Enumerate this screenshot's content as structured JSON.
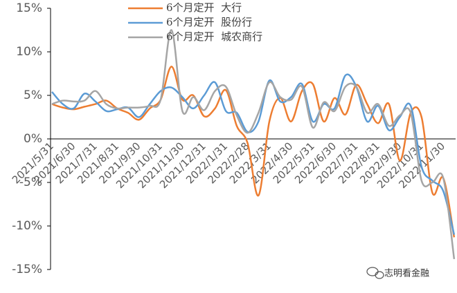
{
  "chart_data": {
    "type": "line",
    "categories": [
      "2021/5/31",
      null,
      "2021/6/30",
      null,
      "2021/7/31",
      null,
      "2021/8/31",
      null,
      "2021/9/30",
      null,
      "2021/10/31",
      null,
      "2021/11/30",
      null,
      "2021/12/31",
      null,
      "2022/1/31",
      null,
      "2022/2/28",
      null,
      "2022/3/31",
      null,
      "2022/4/30",
      null,
      "2022/5/31",
      null,
      "2022/6/30",
      null,
      "2022/7/31",
      null,
      "2022/8/31",
      null,
      "2022/9/30",
      null,
      "2022/10/31",
      null,
      "2022/11/30",
      null
    ],
    "series": [
      {
        "name": "6个月定开  大行",
        "color": "#ed7d31",
        "values": [
          4.0,
          3.6,
          3.4,
          3.7,
          4.0,
          4.4,
          3.5,
          3.0,
          2.2,
          3.5,
          4.5,
          8.3,
          4.5,
          5.0,
          2.6,
          3.5,
          5.6,
          1.5,
          -0.5,
          -6.5,
          2.0,
          4.7,
          2.0,
          5.5,
          6.3,
          2.0,
          4.7,
          2.8,
          6.2,
          4.0,
          1.8,
          4.0,
          -2.5,
          3.0,
          2.5,
          -6.2,
          -4.5,
          -11.3
        ]
      },
      {
        "name": "6个月定开  股份行",
        "color": "#5b9bd5",
        "values": [
          5.4,
          4.0,
          3.5,
          5.2,
          4.3,
          3.2,
          3.4,
          3.6,
          2.5,
          4.0,
          5.5,
          5.9,
          4.8,
          3.5,
          5.0,
          6.5,
          3.2,
          3.0,
          0.8,
          2.0,
          6.7,
          4.3,
          4.8,
          6.3,
          2.0,
          4.0,
          3.5,
          7.3,
          6.0,
          2.0,
          3.8,
          1.0,
          2.5,
          3.8,
          -3.2,
          -4.8,
          -6.0,
          -11.0
        ]
      },
      {
        "name": "6个月定开  城农商行",
        "color": "#a5a5a5",
        "values": [
          4.0,
          4.4,
          4.3,
          4.4,
          5.5,
          4.0,
          3.5,
          3.6,
          3.6,
          3.8,
          4.5,
          12.5,
          3.2,
          4.8,
          3.3,
          5.5,
          6.0,
          2.7,
          0.7,
          3.0,
          6.5,
          4.8,
          4.5,
          6.0,
          1.3,
          4.2,
          3.2,
          6.0,
          6.0,
          3.0,
          4.0,
          1.5,
          2.7,
          3.0,
          -4.8,
          -5.0,
          -4.5,
          -13.8
        ]
      }
    ],
    "ylim": [
      -15,
      15
    ],
    "yticks": [
      {
        "value": -15,
        "label": "-15%"
      },
      {
        "value": -10,
        "label": "-10%"
      },
      {
        "value": -5,
        "label": "-5%"
      },
      {
        "value": 0,
        "label": "0%"
      },
      {
        "value": 5,
        "label": "5%"
      },
      {
        "value": 10,
        "label": "10%"
      },
      {
        "value": 15,
        "label": "15%"
      }
    ],
    "watermark": "志明看金融"
  }
}
